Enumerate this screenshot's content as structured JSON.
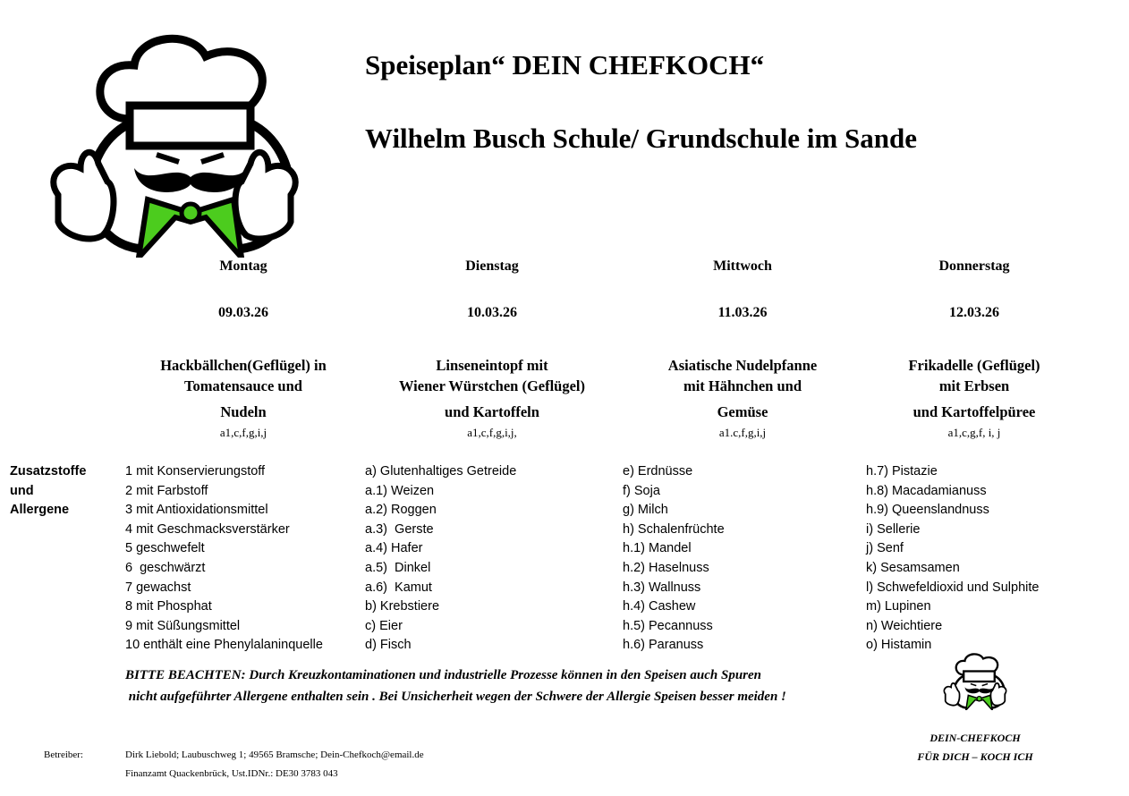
{
  "header": {
    "title": "Speiseplan“ DEIN CHEFKOCH“",
    "subtitle": "Wilhelm Busch Schule/ Grundschule im Sande",
    "logo": "chef-thumbs-up-logo",
    "accent_color": "#4ccc1e"
  },
  "days": [
    {
      "name": "Montag",
      "date": "09.03.26",
      "meal": [
        "Hackbällchen(Geflügel) in",
        "Tomatensauce und",
        "Nudeln"
      ],
      "codes": "a1,c,f,g,i,j"
    },
    {
      "name": "Dienstag",
      "date": "10.03.26",
      "meal": [
        "Linseneintopf mit",
        "Wiener Würstchen (Geflügel)",
        "und Kartoffeln"
      ],
      "codes": "a1,c,f,g,i,j,"
    },
    {
      "name": "Mittwoch",
      "date": "11.03.26",
      "meal": [
        "Asiatische Nudelpfanne",
        "mit Hähnchen und",
        "Gemüse"
      ],
      "codes": "a1.c,f,g,i,j"
    },
    {
      "name": "Donnerstag",
      "date": "12.03.26",
      "meal": [
        "Frikadelle (Geflügel)",
        "mit Erbsen",
        "und Kartoffelpüree"
      ],
      "codes": "a1,c,g,f, i, j"
    }
  ],
  "allergens": {
    "label": [
      "Zusatzstoffe",
      "und",
      "Allergene"
    ],
    "columns": [
      [
        "1 mit Konservierungstoff",
        "2 mit Farbstoff",
        "3 mit Antioxidationsmittel",
        "4 mit Geschmacksverstärker",
        "5 geschwefelt",
        "6  geschwärzt",
        "7 gewachst",
        "8 mit Phosphat",
        "9 mit Süßungsmittel",
        "10 enthält eine Phenylalaninquelle"
      ],
      [
        "a) Glutenhaltiges Getreide",
        "a.1) Weizen",
        "a.2) Roggen",
        "a.3)  Gerste",
        "a.4) Hafer",
        "a.5)  Dinkel",
        "a.6)  Kamut",
        "b) Krebstiere",
        "c) Eier",
        "d) Fisch"
      ],
      [
        "e) Erdnüsse",
        "f) Soja",
        "g) Milch",
        "h) Schalenfrüchte",
        "h.1) Mandel",
        "h.2) Haselnuss",
        "h.3) Wallnuss",
        "h.4) Cashew",
        "h.5) Pecannuss",
        "h.6) Paranuss"
      ],
      [
        "h.7) Pistazie",
        "h.8) Macadamianuss",
        "h.9) Queenslandnuss",
        "i) Sellerie",
        "j) Senf",
        "k) Sesamsamen",
        "l) Schwefeldioxid und Sulphite",
        "m) Lupinen",
        "n) Weichtiere",
        "o) Histamin"
      ]
    ]
  },
  "notice": [
    "BITTE BEACHTEN: Durch  Kreuzkontaminationen und industrielle Prozesse können in den Speisen auch Spuren",
    " nicht aufgeführter Allergene enthalten sein . Bei Unsicherheit wegen der Schwere der Allergie Speisen besser meiden !"
  ],
  "footer": {
    "operator_label": "Betreiber:",
    "operator_line1": "Dirk Liebold; Laubuschweg 1; 49565 Bramsche; Dein-Chefkoch@email.de",
    "operator_line2": "Finanzamt Quackenbrück, Ust.IDNr.: DE30 3783 043",
    "brand": "DEIN-CHEFKOCH",
    "slogan": "FÜR DICH – KOCH ICH"
  }
}
